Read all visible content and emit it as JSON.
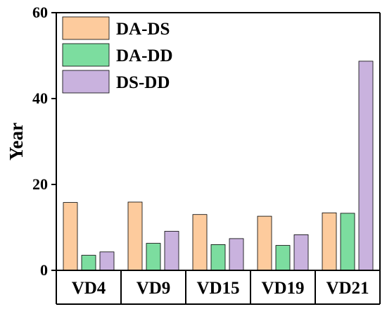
{
  "chart_data": {
    "type": "bar",
    "title": "",
    "xlabel": "",
    "ylabel": "Year",
    "ylim": [
      0,
      60
    ],
    "yticks": [
      0,
      20,
      40,
      60
    ],
    "grid": false,
    "legend_position": "top-left",
    "categories": [
      "VD4",
      "VD9",
      "VD15",
      "VD19",
      "VD21"
    ],
    "series": [
      {
        "name": "DA-DS",
        "color": "#FDCB9D",
        "values": [
          15.8,
          15.9,
          13.0,
          12.6,
          13.4
        ]
      },
      {
        "name": "DA-DD",
        "color": "#7CDD9F",
        "values": [
          3.5,
          6.3,
          6.0,
          5.8,
          13.3
        ]
      },
      {
        "name": "DS-DD",
        "color": "#C9B2DE",
        "values": [
          4.3,
          9.1,
          7.4,
          8.3,
          48.7
        ]
      }
    ]
  }
}
